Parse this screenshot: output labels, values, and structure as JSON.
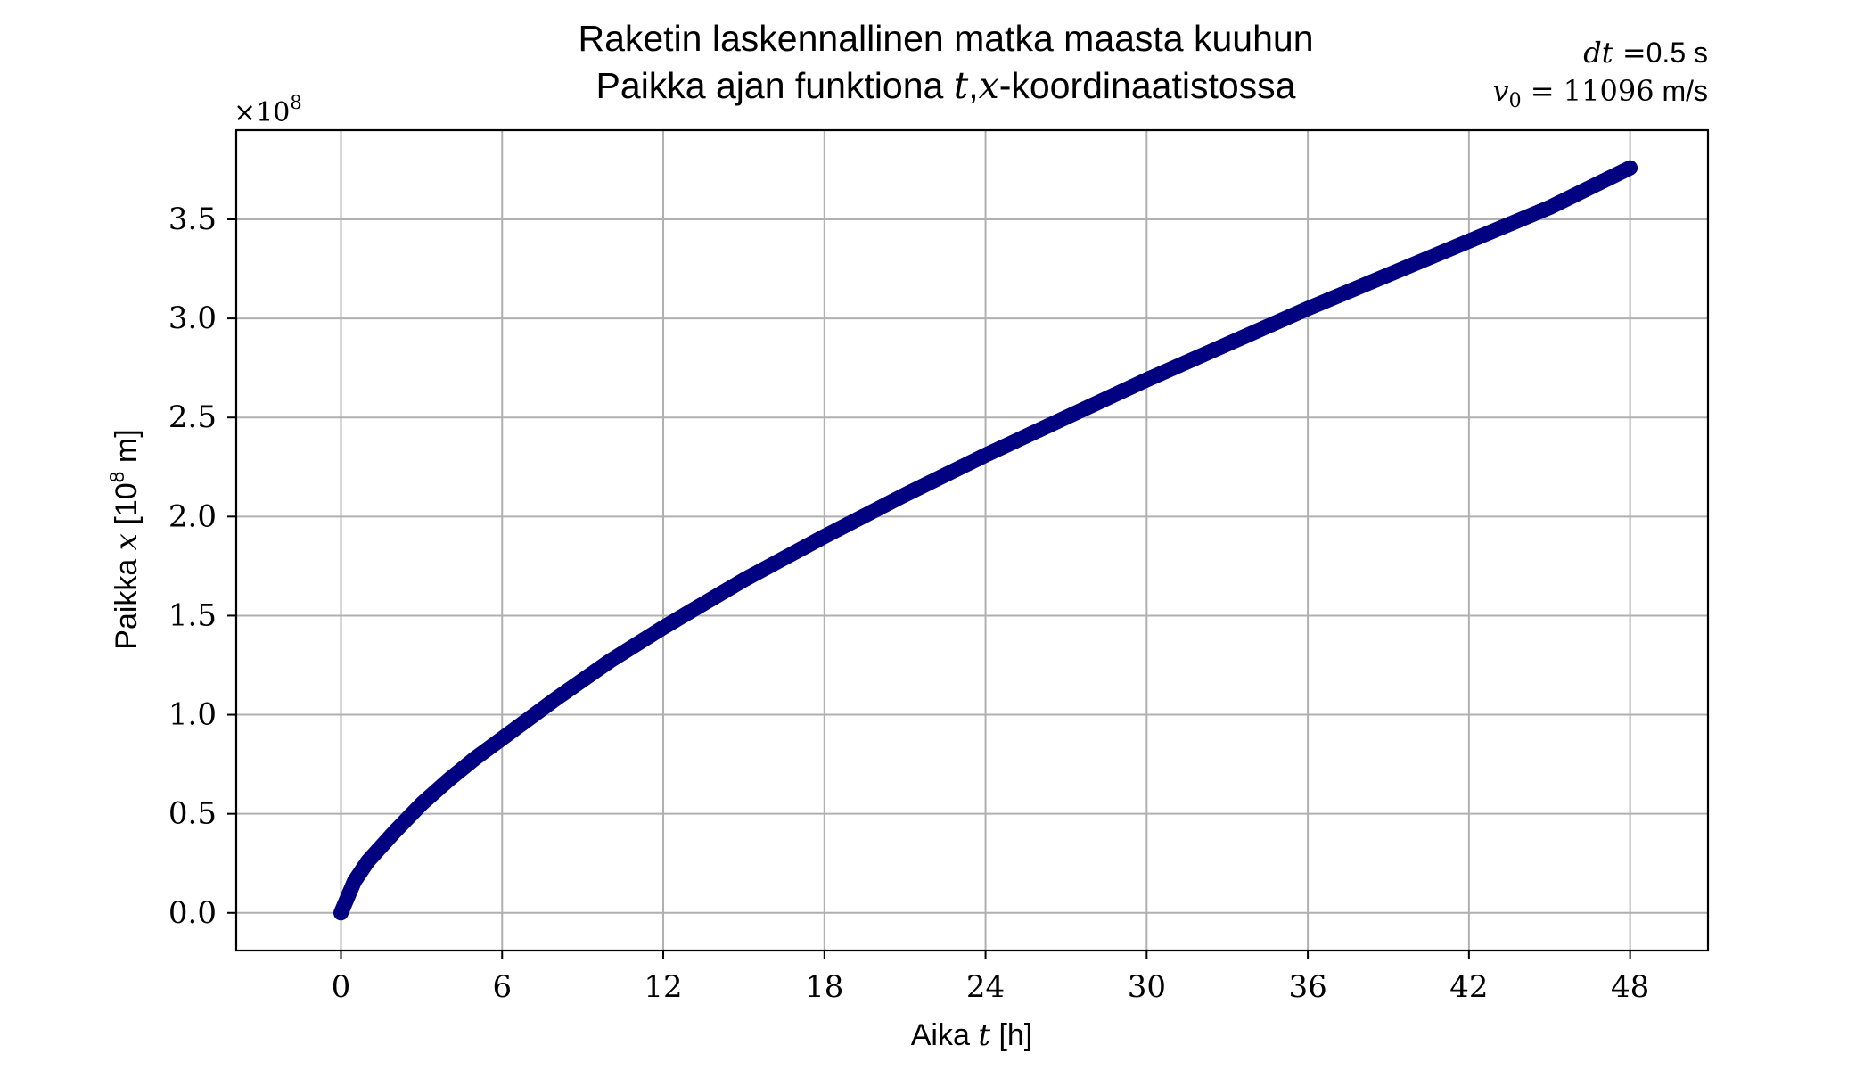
{
  "chart_data": {
    "type": "line",
    "title": "Raketin laskennallinen matka maasta kuuhun",
    "subtitle": {
      "prefix": "Paikka ajan funktiona ",
      "var_t": "t",
      "comma": ",",
      "var_x": "x",
      "suffix": "-koordinaatistossa"
    },
    "annotation": {
      "dt_label": "dt",
      "dt_eq": " =",
      "dt_value": "0.5 s",
      "v_label": "v",
      "v_sub": "0",
      "v_eq": " = ",
      "v_value": "11096",
      "v_unit": " m/s"
    },
    "xlabel": {
      "prefix": "Aika ",
      "var": "t",
      "unit": " [h]"
    },
    "ylabel": {
      "prefix": "Paikka ",
      "var": "x",
      "unit_open": " [10",
      "unit_exp": "8",
      "unit_close": " m]"
    },
    "offset_text": {
      "base": "×10",
      "exp": "8"
    },
    "xlim": [
      -3.9,
      50.9
    ],
    "ylim": [
      -0.19,
      3.95
    ],
    "xticks": [
      {
        "value": 0,
        "label": "0"
      },
      {
        "value": 6,
        "label": "6"
      },
      {
        "value": 12,
        "label": "12"
      },
      {
        "value": 18,
        "label": "18"
      },
      {
        "value": 24,
        "label": "24"
      },
      {
        "value": 30,
        "label": "30"
      },
      {
        "value": 36,
        "label": "36"
      },
      {
        "value": 42,
        "label": "42"
      },
      {
        "value": 48,
        "label": "48"
      }
    ],
    "yticks": [
      {
        "value": 0.0,
        "label": "0.0"
      },
      {
        "value": 0.5,
        "label": "0.5"
      },
      {
        "value": 1.0,
        "label": "1.0"
      },
      {
        "value": 1.5,
        "label": "1.5"
      },
      {
        "value": 2.0,
        "label": "2.0"
      },
      {
        "value": 2.5,
        "label": "2.5"
      },
      {
        "value": 3.0,
        "label": "3.0"
      },
      {
        "value": 3.5,
        "label": "3.5"
      }
    ],
    "grid": true,
    "series": [
      {
        "color": "#000080",
        "x": [
          0,
          0.5,
          1,
          2,
          3,
          4,
          5,
          6,
          8,
          10,
          12,
          15,
          18,
          21,
          24,
          27,
          30,
          33,
          36,
          39,
          42,
          45,
          48
        ],
        "y": [
          0,
          0.16,
          0.26,
          0.41,
          0.55,
          0.67,
          0.78,
          0.88,
          1.08,
          1.27,
          1.44,
          1.68,
          1.9,
          2.11,
          2.31,
          2.5,
          2.69,
          2.87,
          3.05,
          3.22,
          3.39,
          3.56,
          3.76
        ]
      }
    ]
  }
}
